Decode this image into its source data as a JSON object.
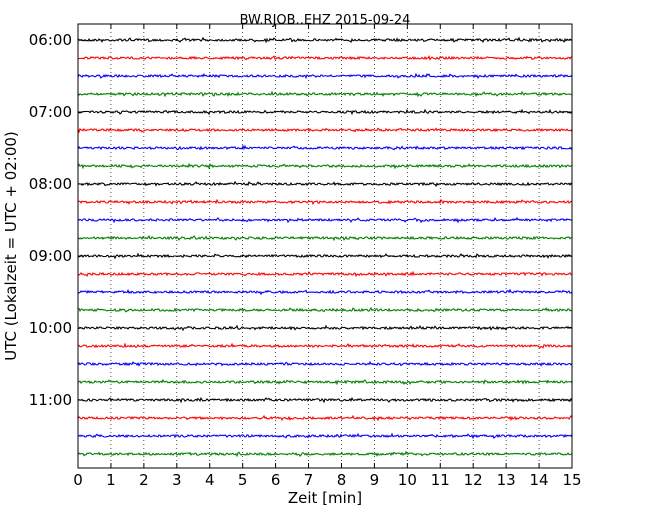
{
  "chart_data": {
    "type": "line",
    "title": "BW.RJOB..EHZ 2015-09-24",
    "xlabel": "Zeit  [min]",
    "ylabel": "UTC (Lokalzeit = UTC + 02:00)",
    "xlim": [
      0,
      15
    ],
    "x_ticks": [
      0,
      1,
      2,
      3,
      4,
      5,
      6,
      7,
      8,
      9,
      10,
      11,
      12,
      13,
      14,
      15
    ],
    "x_tick_labels": [
      "0",
      "1",
      "2",
      "3",
      "4",
      "5",
      "6",
      "7",
      "8",
      "9",
      "10",
      "11",
      "12",
      "13",
      "14",
      "15"
    ],
    "y_tick_labels": [
      "06:00",
      "07:00",
      "08:00",
      "09:00",
      "10:00",
      "11:00"
    ],
    "grid": "vertical dotted",
    "trace_minutes": 15,
    "colors": [
      "#000000",
      "#ff0000",
      "#0000ff",
      "#008000"
    ],
    "series": [
      {
        "start": "06:00",
        "color": "#000000"
      },
      {
        "start": "06:15",
        "color": "#ff0000"
      },
      {
        "start": "06:30",
        "color": "#0000ff"
      },
      {
        "start": "06:45",
        "color": "#008000"
      },
      {
        "start": "07:00",
        "color": "#000000"
      },
      {
        "start": "07:15",
        "color": "#ff0000"
      },
      {
        "start": "07:30",
        "color": "#0000ff"
      },
      {
        "start": "07:45",
        "color": "#008000"
      },
      {
        "start": "08:00",
        "color": "#000000"
      },
      {
        "start": "08:15",
        "color": "#ff0000"
      },
      {
        "start": "08:30",
        "color": "#0000ff"
      },
      {
        "start": "08:45",
        "color": "#008000"
      },
      {
        "start": "09:00",
        "color": "#000000"
      },
      {
        "start": "09:15",
        "color": "#ff0000"
      },
      {
        "start": "09:30",
        "color": "#0000ff"
      },
      {
        "start": "09:45",
        "color": "#008000"
      },
      {
        "start": "10:00",
        "color": "#000000"
      },
      {
        "start": "10:15",
        "color": "#ff0000"
      },
      {
        "start": "10:30",
        "color": "#0000ff"
      },
      {
        "start": "10:45",
        "color": "#008000"
      },
      {
        "start": "11:00",
        "color": "#000000"
      },
      {
        "start": "11:15",
        "color": "#ff0000"
      },
      {
        "start": "11:30",
        "color": "#0000ff"
      },
      {
        "start": "11:45",
        "color": "#008000"
      }
    ]
  }
}
